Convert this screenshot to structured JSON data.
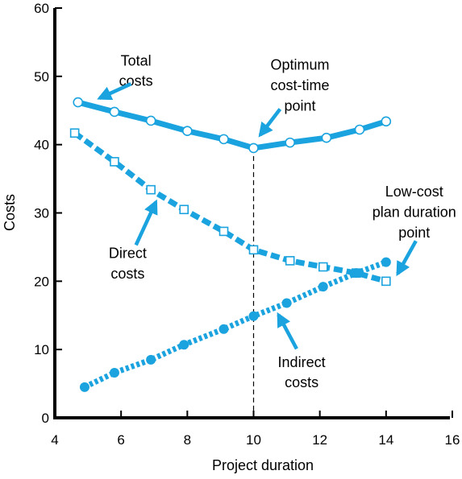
{
  "chart_data": {
    "type": "line",
    "xlabel": "Project duration",
    "ylabel": "Costs",
    "xlim": [
      4,
      16
    ],
    "ylim": [
      0,
      60
    ],
    "xticks": [
      "4",
      "6",
      "8",
      "10",
      "12",
      "14",
      "16"
    ],
    "yticks": [
      "0",
      "10",
      "20",
      "30",
      "40",
      "50",
      "60"
    ],
    "grid": false,
    "series": [
      {
        "key": "total",
        "color": "#1aa3de",
        "style": "solid",
        "marker": "open-circle",
        "x": [
          4.7,
          5.8,
          6.9,
          8.0,
          9.1,
          10.0,
          11.1,
          12.2,
          13.2,
          14.0
        ],
        "y": [
          46.2,
          44.8,
          43.5,
          42.0,
          40.8,
          39.5,
          40.3,
          41.0,
          42.2,
          43.4
        ]
      },
      {
        "key": "direct",
        "color": "#1aa3de",
        "style": "dashed",
        "marker": "open-square",
        "x": [
          4.6,
          5.8,
          6.9,
          7.9,
          9.1,
          10.0,
          11.1,
          12.1,
          13.1,
          14.0
        ],
        "y": [
          41.7,
          37.5,
          33.4,
          30.5,
          27.3,
          24.6,
          23.0,
          22.1,
          21.2,
          20.0
        ]
      },
      {
        "key": "indirect",
        "color": "#1aa3de",
        "style": "dotted",
        "marker": "filled-circle",
        "x": [
          4.9,
          5.8,
          6.9,
          7.9,
          9.1,
          10.0,
          11.0,
          12.1,
          13.1,
          14.0
        ],
        "y": [
          4.5,
          6.6,
          8.5,
          10.7,
          13.0,
          14.9,
          16.8,
          19.2,
          21.2,
          22.8
        ]
      }
    ],
    "optimum_line": {
      "x": 10,
      "y": 39.5
    },
    "annotations": [
      {
        "key": "total-costs",
        "lines": [
          "Total",
          "costs"
        ],
        "text_at": [
          6.45,
          51.6
        ],
        "line_gap": 3.0,
        "arrow_from": [
          6.3,
          48.9
        ],
        "arrow_to": [
          5.35,
          46.8
        ]
      },
      {
        "key": "optimum",
        "lines": [
          "Optimum",
          "cost-time",
          "point"
        ],
        "text_at": [
          11.4,
          51.0
        ],
        "line_gap": 3.0,
        "arrow_from": [
          10.8,
          45.2
        ],
        "arrow_to": [
          10.2,
          41.4
        ]
      },
      {
        "key": "direct-costs",
        "lines": [
          "Direct",
          "costs"
        ],
        "text_at": [
          6.2,
          23.4
        ],
        "line_gap": 3.0,
        "arrow_from": [
          6.45,
          25.3
        ],
        "arrow_to": [
          7.05,
          31.6
        ]
      },
      {
        "key": "low-cost",
        "lines": [
          "Low-cost",
          "plan duration",
          "point"
        ],
        "text_at": [
          14.85,
          32.4
        ],
        "line_gap": 3.0,
        "arrow_from": [
          14.9,
          25.9
        ],
        "arrow_to": [
          14.35,
          21.1
        ]
      },
      {
        "key": "indirect-costs",
        "lines": [
          "Indirect",
          "costs"
        ],
        "text_at": [
          11.45,
          7.45
        ],
        "line_gap": 3.0,
        "arrow_from": [
          11.3,
          10.1
        ],
        "arrow_to": [
          10.75,
          15.1
        ]
      }
    ]
  }
}
